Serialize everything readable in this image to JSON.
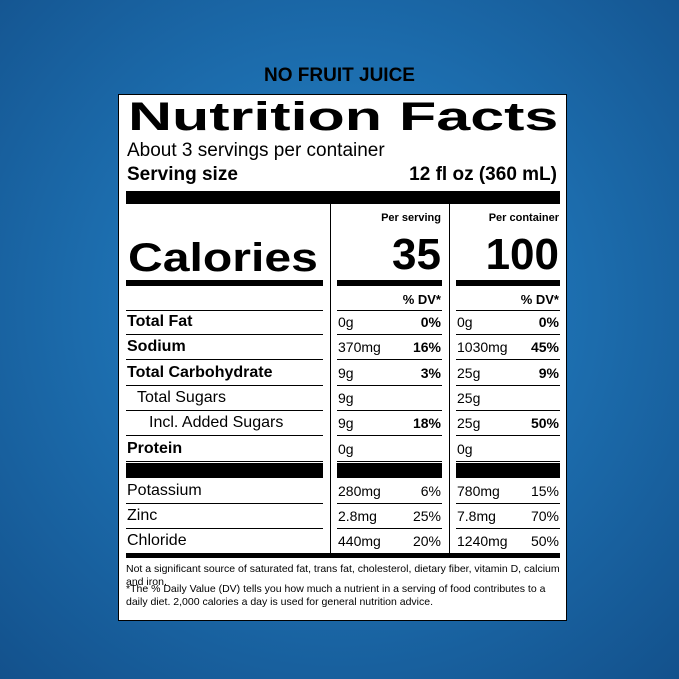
{
  "header": "NO FRUIT JUICE",
  "label": {
    "title": "Nutrition Facts",
    "servings": "About 3 servings per container",
    "serving_size_label": "Serving size",
    "serving_size": "12 fl oz (360 mL)",
    "per_serving": "Per serving",
    "per_container": "Per container",
    "calories_label": "Calories",
    "calories_serving": "35",
    "calories_container": "100",
    "dv_header": "% DV*",
    "rows": [
      {
        "name": "Total Fat",
        "bold": true,
        "serving": "0g",
        "serving_dv": "0%",
        "container": "0g",
        "container_dv": "0%"
      },
      {
        "name": "Sodium",
        "bold": true,
        "serving": "370mg",
        "serving_dv": "16%",
        "container": "1030mg",
        "container_dv": "45%"
      },
      {
        "name": "Total Carbohydrate",
        "bold": true,
        "serving": "9g",
        "serving_dv": "3%",
        "container": "25g",
        "container_dv": "9%"
      },
      {
        "name": "Total Sugars",
        "indent": 1,
        "serving": "9g",
        "container": "25g"
      },
      {
        "name": "Incl. Added Sugars",
        "indent": 2,
        "dv_bold": true,
        "serving": "9g",
        "serving_dv": "18%",
        "container": "25g",
        "container_dv": "50%"
      },
      {
        "name": "Protein",
        "bold": true,
        "serving": "0g",
        "container": "0g"
      }
    ],
    "minerals": [
      {
        "name": "Potassium",
        "serving": "280mg",
        "serving_dv": "6%",
        "container": "780mg",
        "container_dv": "15%"
      },
      {
        "name": "Zinc",
        "serving": "2.8mg",
        "serving_dv": "25%",
        "container": "7.8mg",
        "container_dv": "70%"
      },
      {
        "name": "Chloride",
        "serving": "440mg",
        "serving_dv": "20%",
        "container": "1240mg",
        "container_dv": "50%"
      }
    ],
    "footnotes": [
      "Not a significant source of saturated fat, trans fat, cholesterol, dietary fiber, vitamin D, calcium and iron.",
      "*The % Daily Value (DV) tells you how much a nutrient in a serving of food contributes to a daily diet. 2,000 calories a day is used for general nutrition advice."
    ]
  }
}
